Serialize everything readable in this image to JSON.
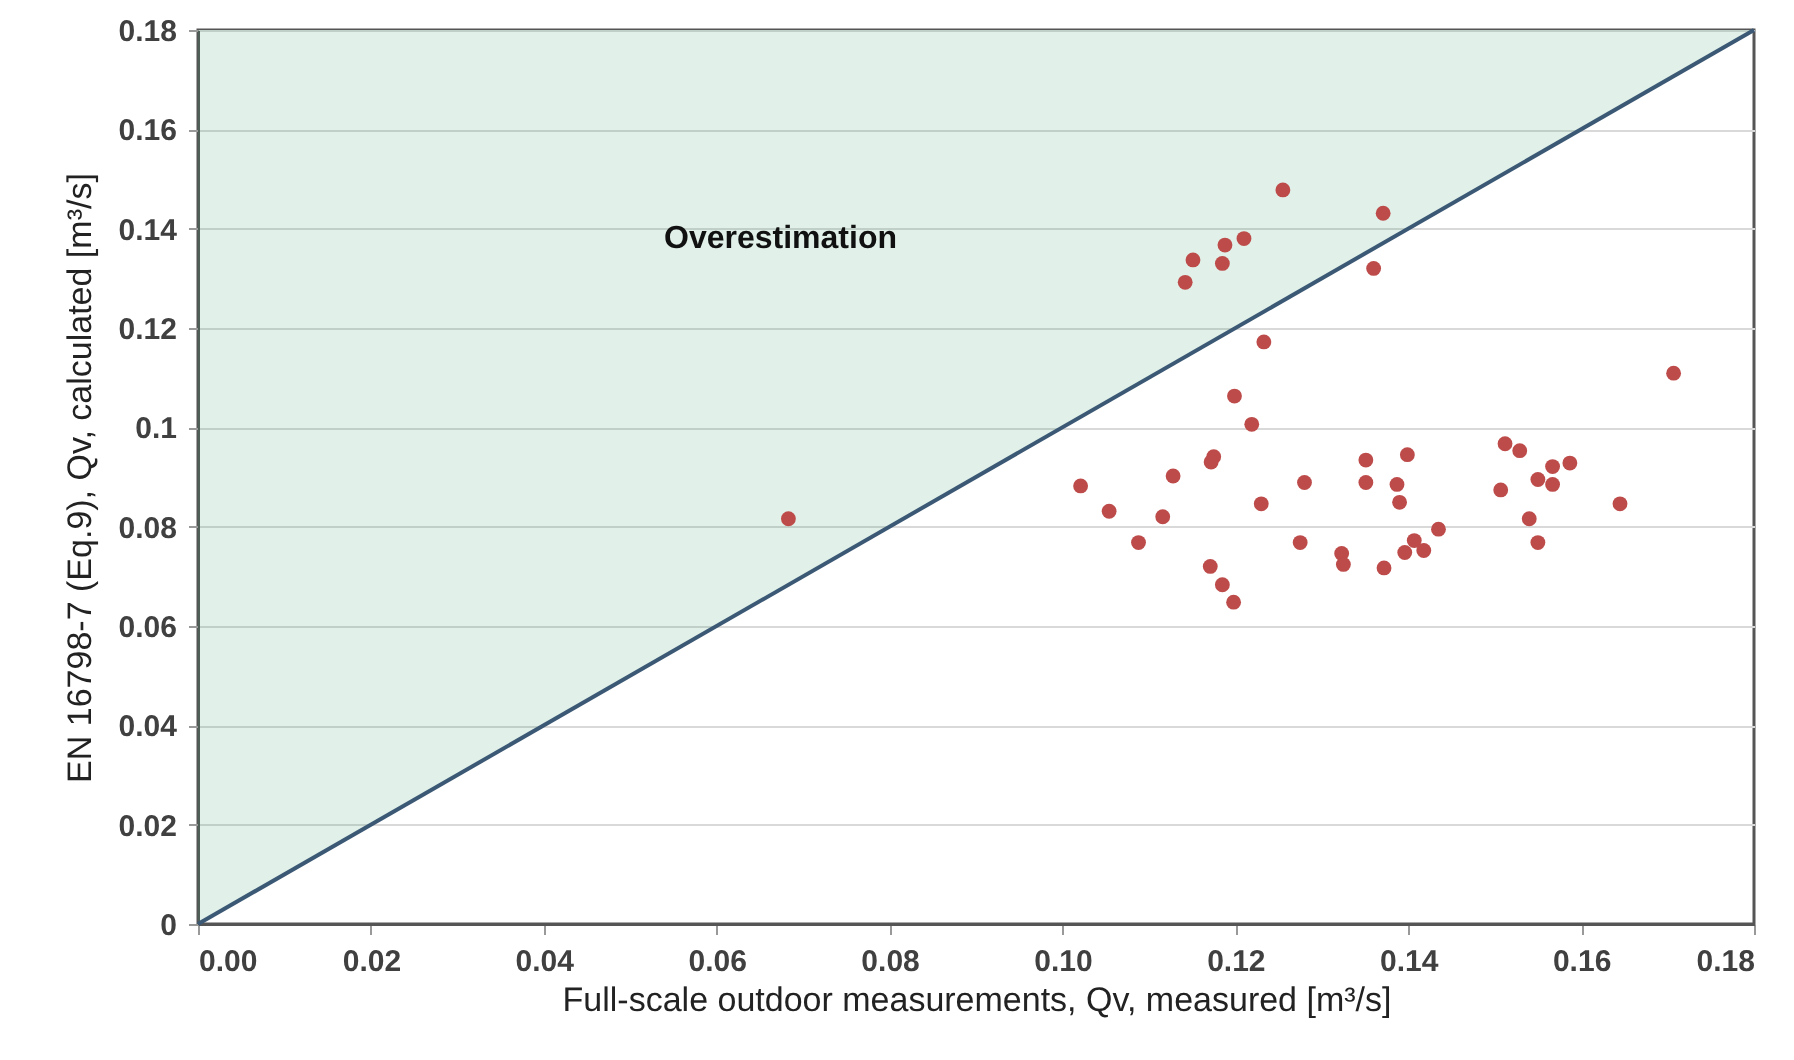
{
  "chart_data": {
    "type": "scatter",
    "xlabel": "Full-scale outdoor measurements, Qv, measured [m³/s]",
    "ylabel": "EN 16798-7 (Eq.9), Qv, calculated [m³/s]",
    "annotations": [
      "Overestimation"
    ],
    "xlim": [
      0,
      0.18
    ],
    "ylim": [
      0,
      0.18
    ],
    "xticks": [
      {
        "value": 0,
        "label": "0.00"
      },
      {
        "value": 0.02,
        "label": "0.02"
      },
      {
        "value": 0.04,
        "label": "0.04"
      },
      {
        "value": 0.06,
        "label": "0.06"
      },
      {
        "value": 0.08,
        "label": "0.08"
      },
      {
        "value": 0.1,
        "label": "0.10"
      },
      {
        "value": 0.12,
        "label": "0.12"
      },
      {
        "value": 0.14,
        "label": "0.14"
      },
      {
        "value": 0.16,
        "label": "0.16"
      },
      {
        "value": 0.18,
        "label": "0.18"
      }
    ],
    "yticks": [
      0,
      0.02,
      0.04,
      0.06,
      0.08,
      0.1,
      0.12,
      0.14,
      0.16,
      0.18
    ],
    "grid": "y",
    "series": [
      {
        "type": "line",
        "color": "#3b5875",
        "line_style": "solid",
        "x": [
          0,
          0.18
        ],
        "values": [
          0,
          0.18
        ],
        "lower": [
          0,
          0.18
        ],
        "upper": [
          0.18,
          0.18
        ]
      },
      {
        "color": "#bd4b4a",
        "marker": "circle",
        "x": [
          0.1255,
          0.1371,
          0.1188,
          0.121,
          0.1151,
          0.1185,
          0.1142,
          0.136,
          0.0683,
          0.1233,
          0.1199,
          0.1219,
          0.1021,
          0.1054,
          0.1088,
          0.1116,
          0.1128,
          0.1175,
          0.1172,
          0.1171,
          0.1185,
          0.1198,
          0.123,
          0.128,
          0.1275,
          0.1323,
          0.1325,
          0.1351,
          0.1351,
          0.1387,
          0.139,
          0.1399,
          0.1372,
          0.1396,
          0.1407,
          0.1418,
          0.1435,
          0.1512,
          0.1529,
          0.1507,
          0.155,
          0.1567,
          0.1567,
          0.1587,
          0.154,
          0.155,
          0.1645,
          0.1707
        ],
        "values": [
          0.1478,
          0.1431,
          0.1367,
          0.138,
          0.1337,
          0.133,
          0.1292,
          0.132,
          0.0816,
          0.1172,
          0.1063,
          0.1006,
          0.0882,
          0.0831,
          0.0768,
          0.082,
          0.0902,
          0.0941,
          0.093,
          0.072,
          0.0683,
          0.0648,
          0.0846,
          0.0889,
          0.0768,
          0.0746,
          0.0724,
          0.0934,
          0.0889,
          0.0885,
          0.0849,
          0.0945,
          0.0717,
          0.0748,
          0.0772,
          0.0752,
          0.0795,
          0.0967,
          0.0953,
          0.0874,
          0.0895,
          0.0921,
          0.0885,
          0.0928,
          0.0816,
          0.0768,
          0.0846,
          0.1109
        ]
      }
    ]
  }
}
